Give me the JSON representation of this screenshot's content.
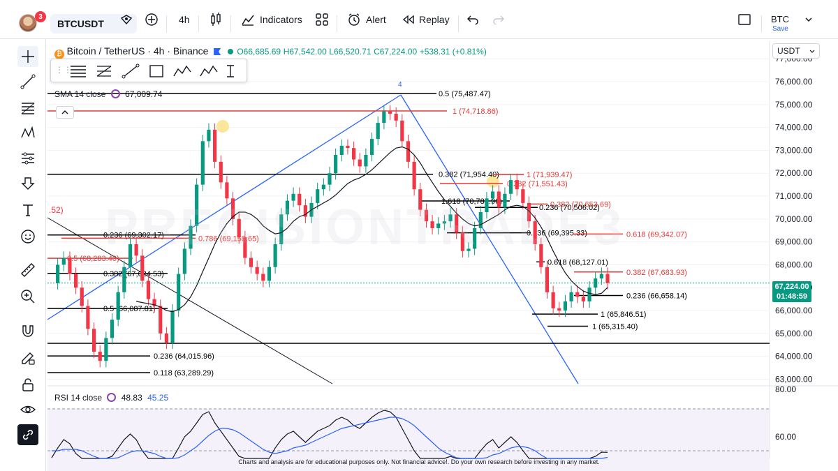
{
  "topbar": {
    "avatar_badge": "3",
    "symbol": "BTCUSDT",
    "interval": "4h",
    "indicators_label": "Indicators",
    "alert_label": "Alert",
    "replay_label": "Replay",
    "currency": "BTC",
    "save_label": "Save"
  },
  "legend": {
    "title": "Bitcoin / TetherUS · 4h · Binance",
    "open": "O66,685.69",
    "high": "H67,542.00",
    "low": "L66,520.71",
    "close": "C67,224.00",
    "change": "+538.31 (+0.81%)",
    "sma_label": "SMA 14 close",
    "sma_value": "67,009.74",
    "rsi_label": "RSI 14 close",
    "rsi_value": "48.83",
    "rsi_ma_value": "45.25"
  },
  "price_axis": {
    "unit": "USDT",
    "last_price": "67,224.00",
    "countdown": "01:48:59"
  },
  "watermark": "PRECISIONTRADE3",
  "disclaimer": "Charts and analysis are for educational purposes only. Not financial advice!. Do your own research before investing in any market.",
  "colors": {
    "up": "#089981",
    "down": "#f23645",
    "sma": "#131722",
    "trend": "#2962ff",
    "level_black": "#000000",
    "level_red": "#e53935",
    "level_green": "#4caf50",
    "rsi_bg": "#ede7f6",
    "rsi_line": "#131722",
    "rsi_ma": "#2962ff"
  },
  "chart_data": {
    "type": "line",
    "title": "Bitcoin / TetherUS · 4h · Binance",
    "ylim": [
      62800,
      77800
    ],
    "y_ticks": [
      "77,000.00",
      "76,000.00",
      "75,000.00",
      "74,000.00",
      "73,000.00",
      "72,000.00",
      "71,000.00",
      "70,000.00",
      "69,000.00",
      "68,000.00",
      "67,000.00",
      "66,000.00",
      "65,000.00",
      "64,000.00",
      "63,000.00"
    ],
    "y_tick_values": [
      77000,
      76000,
      75000,
      74000,
      73000,
      72000,
      71000,
      70000,
      69000,
      68000,
      67000,
      66000,
      65000,
      64000,
      63000
    ],
    "series": [
      {
        "name": "BTCUSDT",
        "values": [
          67200,
          68000,
          68300,
          67600,
          67000,
          66200,
          65200,
          64200,
          63800,
          64800,
          65600,
          66800,
          67900,
          68900,
          68400,
          67300,
          66500,
          66200,
          65000,
          64600,
          66000,
          67600,
          68700,
          69700,
          71500,
          73400,
          73900,
          72500,
          71600,
          70900,
          70000,
          69200,
          68300,
          67900,
          67600,
          67300,
          67900,
          68900,
          70200,
          70800,
          71100,
          70600,
          70100,
          70700,
          71300,
          71500,
          72000,
          72800,
          73200,
          73100,
          72600,
          72300,
          72800,
          73500,
          74200,
          74700,
          74600,
          74300,
          73400,
          72500,
          71300,
          70400,
          69900,
          69600,
          69800,
          69900,
          70200,
          69400,
          68600,
          68700,
          69600,
          70300,
          70900,
          71200,
          70500,
          71100,
          71700,
          71300,
          70700,
          69900,
          68900,
          67900,
          66800,
          66100,
          66000,
          66400,
          66800,
          66600,
          66400,
          67000,
          67400,
          67600,
          67200
        ]
      },
      {
        "name": "SMA 14 close",
        "values": [
          null,
          null,
          null,
          null,
          null,
          null,
          null,
          null,
          null,
          null,
          null,
          null,
          null,
          null,
          66400,
          66350,
          66300,
          66250,
          66150,
          66000,
          65950,
          66050,
          66250,
          66600,
          67100,
          67700,
          68300,
          68900,
          69400,
          69800,
          70100,
          70300,
          70300,
          70200,
          70000,
          69700,
          69500,
          69350,
          69400,
          69600,
          69900,
          70100,
          70200,
          70400,
          70550,
          70700,
          70850,
          71050,
          71300,
          71550,
          71700,
          71800,
          71950,
          72150,
          72400,
          72650,
          72900,
          73100,
          73150,
          73050,
          72800,
          72450,
          72000,
          71600,
          71200,
          70850,
          70550,
          70250,
          70000,
          69800,
          69700,
          69750,
          69900,
          70050,
          70200,
          70400,
          70550,
          70600,
          70550,
          70350,
          70050,
          69650,
          69150,
          68600,
          68100,
          67650,
          67300,
          67050,
          66850,
          66750,
          66700,
          66750,
          67010
        ]
      },
      {
        "name": "RSI 14 close",
        "values": [
          45,
          52,
          58,
          55,
          48,
          40,
          34,
          30,
          32,
          40,
          46,
          52,
          58,
          62,
          58,
          50,
          44,
          42,
          36,
          33,
          42,
          52,
          60,
          64,
          70,
          76,
          78,
          70,
          64,
          58,
          52,
          46,
          42,
          40,
          39,
          38,
          44,
          52,
          58,
          62,
          64,
          60,
          56,
          60,
          64,
          66,
          68,
          72,
          74,
          72,
          68,
          66,
          70,
          74,
          77,
          79,
          78,
          74,
          66,
          58,
          50,
          44,
          41,
          40,
          42,
          43,
          46,
          40,
          36,
          37,
          44,
          50,
          55,
          58,
          52,
          56,
          60,
          56,
          50,
          44,
          38,
          34,
          30,
          29,
          30,
          35,
          40,
          38,
          36,
          42,
          46,
          49,
          48.83
        ]
      },
      {
        "name": "RSI MA",
        "values": [
          50,
          50,
          51,
          51,
          51,
          50,
          48,
          46,
          44,
          44,
          44,
          45,
          47,
          49,
          50,
          50,
          49,
          48,
          46,
          44,
          44,
          45,
          47,
          50,
          53,
          57,
          61,
          64,
          66,
          66,
          65,
          63,
          60,
          57,
          54,
          51,
          49,
          48,
          49,
          50,
          52,
          53,
          54,
          56,
          58,
          60,
          62,
          64,
          66,
          67,
          68,
          69,
          70,
          71,
          72,
          73,
          74,
          74,
          73,
          71,
          68,
          64,
          60,
          56,
          52,
          49,
          47,
          45,
          43,
          42,
          42,
          43,
          45,
          47,
          48,
          50,
          52,
          53,
          53,
          52,
          50,
          47,
          44,
          41,
          38,
          36,
          35,
          35,
          35,
          36,
          38,
          41,
          45.25
        ]
      }
    ],
    "fib_levels": [
      {
        "label": "0.5 (75,487.47)",
        "price": 75487.47,
        "color": "black"
      },
      {
        "label": "1 (74,718.86)",
        "price": 74718.86,
        "color": "red"
      },
      {
        "label": "0.382 (71,954.40)",
        "price": 71954.4,
        "color": "black"
      },
      {
        "label": "1 (71,939.47)",
        "price": 71939.47,
        "color": "red"
      },
      {
        "label": "0.382 (71,551.43)",
        "price": 71551.43,
        "color": "red"
      },
      {
        "label": "1.618 (70,785.96)",
        "price": 70785.96,
        "color": "black"
      },
      {
        "label": "0.382 (70,653.69)",
        "price": 70653.69,
        "color": "red"
      },
      {
        "label": "0.236 (70,506.02)",
        "price": 70506.02,
        "color": "black"
      },
      {
        "label": "0.236 (69,395.33)",
        "price": 69395.33,
        "color": "black"
      },
      {
        "label": "0.618 (69,342.07)",
        "price": 69342.07,
        "color": "red"
      },
      {
        "label": "0.236 (69,302.17)",
        "price": 69302.17,
        "color": "black"
      },
      {
        "label": "0.786 (69,158.65)",
        "price": 69158.65,
        "color": "red"
      },
      {
        "label": "0.5 (68,283.40)",
        "price": 68283.4,
        "color": "red"
      },
      {
        "label": "0.618 (68,127.01)",
        "price": 68127.01,
        "color": "black"
      },
      {
        "label": "0.382 (67,683.93)",
        "price": 67683.93,
        "color": "red"
      },
      {
        "label": "0.382 (67,624.53)",
        "price": 67624.53,
        "color": "black"
      },
      {
        "label": "0.236 (66,658.14)",
        "price": 66658.14,
        "color": "black"
      },
      {
        "label": "0.5 (66,087.81)",
        "price": 66087.81,
        "color": "black"
      },
      {
        "label": "1 (65,846.51)",
        "price": 65846.51,
        "color": "black"
      },
      {
        "label": "1 (65,315.40)",
        "price": 65315.4,
        "color": "black"
      },
      {
        "label": "0.236 (64,015.96)",
        "price": 64015.96,
        "color": "black"
      },
      {
        "label": "0.118 (63,289.29)",
        "price": 63289.29,
        "color": "black"
      }
    ],
    "annotations": [
      "4",
      ".52)"
    ],
    "rsi_ticks": [
      "80.00",
      "60.00"
    ],
    "grid": true,
    "legend_position": "top-left"
  }
}
